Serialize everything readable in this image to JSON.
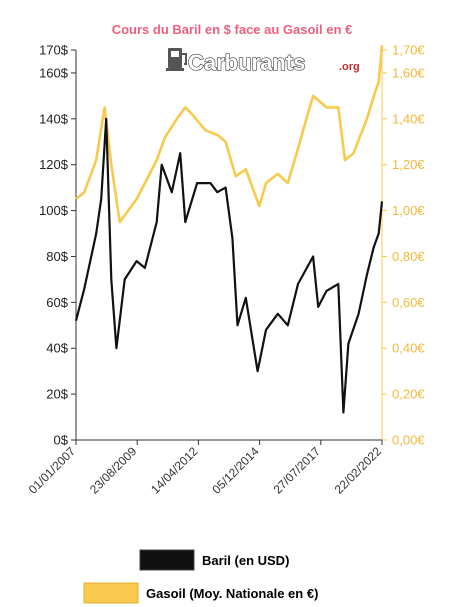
{
  "colors": {
    "title": "#ef5f7d",
    "baril": "#111111",
    "gasoil": "#f8c94d",
    "right_axis_text": "#f2b93b",
    "axis": "#333333"
  },
  "logo": {
    "text": "Carburants",
    "suffix": ".org",
    "icon": "fuel-pump-icon"
  },
  "chart_data": {
    "type": "line",
    "title": "Cours du Baril en $ face au Gasoil en €",
    "x_tick_labels": [
      "01/01/2007",
      "23/08/2009",
      "14/04/2012",
      "05/12/2014",
      "27/07/2017",
      "22/02/2022"
    ],
    "x_range": [
      "2007-01-01",
      "2022-03-01"
    ],
    "y_left": {
      "range": [
        0,
        170
      ],
      "ticks": [
        {
          "value": 0,
          "label": "0$"
        },
        {
          "value": 20,
          "label": "20$"
        },
        {
          "value": 40,
          "label": "40$"
        },
        {
          "value": 60,
          "label": "60$"
        },
        {
          "value": 80,
          "label": "80$"
        },
        {
          "value": 100,
          "label": "100$"
        },
        {
          "value": 120,
          "label": "120$"
        },
        {
          "value": 140,
          "label": "140$"
        },
        {
          "value": 160,
          "label": "160$"
        },
        {
          "value": 170,
          "label": "170$"
        }
      ]
    },
    "y_right": {
      "range": [
        0,
        1.7
      ],
      "ticks": [
        {
          "value": 0,
          "label": "0,00€"
        },
        {
          "value": 0.2,
          "label": "0,20€"
        },
        {
          "value": 0.4,
          "label": "0,40€"
        },
        {
          "value": 0.6,
          "label": "0,60€"
        },
        {
          "value": 0.8,
          "label": "0,80€"
        },
        {
          "value": 1.0,
          "label": "1,00€"
        },
        {
          "value": 1.2,
          "label": "1,20€"
        },
        {
          "value": 1.4,
          "label": "1,40€"
        },
        {
          "value": 1.6,
          "label": "1,60€"
        },
        {
          "value": 1.7,
          "label": "1,70€"
        }
      ]
    },
    "grid": false,
    "legend_placement": "bottom",
    "series": [
      {
        "name": "Baril (en USD)",
        "axis": "left",
        "x": [
          "2007-01-01",
          "2007-06-01",
          "2008-01-01",
          "2008-04-01",
          "2008-07-01",
          "2008-10-01",
          "2009-01-01",
          "2009-06-01",
          "2010-01-01",
          "2010-06-01",
          "2011-01-01",
          "2011-04-01",
          "2011-10-01",
          "2012-03-01",
          "2012-06-01",
          "2013-01-01",
          "2013-09-01",
          "2014-01-01",
          "2014-06-01",
          "2014-10-01",
          "2015-01-01",
          "2015-06-01",
          "2016-01-01",
          "2016-06-01",
          "2017-01-01",
          "2017-07-01",
          "2018-01-01",
          "2018-10-01",
          "2019-01-01",
          "2019-06-01",
          "2020-01-01",
          "2020-04-01",
          "2020-07-01",
          "2021-01-01",
          "2021-06-01",
          "2021-10-01",
          "2022-01-01",
          "2022-03-01"
        ],
        "values": [
          52,
          66,
          90,
          105,
          140,
          70,
          40,
          70,
          78,
          75,
          95,
          120,
          108,
          125,
          95,
          112,
          112,
          108,
          110,
          88,
          50,
          62,
          30,
          48,
          55,
          50,
          68,
          80,
          58,
          65,
          68,
          12,
          42,
          55,
          72,
          84,
          90,
          104
        ]
      },
      {
        "name": "Gasoil (Moy. Nationale en €)",
        "axis": "right",
        "x": [
          "2007-01-01",
          "2007-06-01",
          "2008-01-01",
          "2008-06-01",
          "2008-10-01",
          "2009-03-01",
          "2009-08-01",
          "2010-01-01",
          "2010-06-01",
          "2011-01-01",
          "2011-06-01",
          "2012-01-01",
          "2012-06-01",
          "2012-10-01",
          "2013-06-01",
          "2014-01-01",
          "2014-06-01",
          "2014-12-01",
          "2015-06-01",
          "2016-02-01",
          "2016-06-01",
          "2017-01-01",
          "2017-07-01",
          "2018-01-01",
          "2018-06-01",
          "2018-10-01",
          "2019-06-01",
          "2020-01-01",
          "2020-05-01",
          "2020-10-01",
          "2021-06-01",
          "2021-11-01",
          "2022-01-01",
          "2022-03-01"
        ],
        "values": [
          1.05,
          1.08,
          1.22,
          1.45,
          1.2,
          0.95,
          1.0,
          1.05,
          1.12,
          1.22,
          1.32,
          1.4,
          1.45,
          1.42,
          1.35,
          1.33,
          1.3,
          1.15,
          1.18,
          1.02,
          1.12,
          1.16,
          1.12,
          1.27,
          1.4,
          1.5,
          1.45,
          1.45,
          1.22,
          1.25,
          1.4,
          1.52,
          1.56,
          1.72
        ]
      }
    ]
  }
}
